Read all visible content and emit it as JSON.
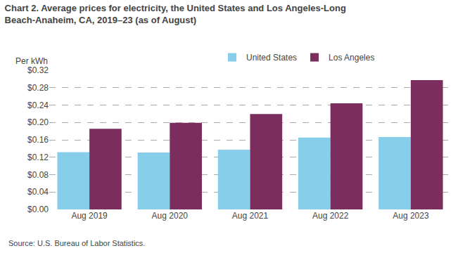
{
  "chart_data": {
    "type": "bar",
    "title": "Chart 2. Average prices for electricity, the United States and Los Angeles-Long Beach-Anaheim, CA, 2019–23 (as of August)",
    "ylabel": "Per kWh",
    "categories": [
      "Aug 2019",
      "Aug 2020",
      "Aug 2021",
      "Aug 2022",
      "Aug 2023"
    ],
    "series": [
      {
        "name": "United States",
        "color": "#87CEEB",
        "values": [
          0.1316,
          0.1309,
          0.1375,
          0.1651,
          0.1665
        ]
      },
      {
        "name": "Los Angeles",
        "color": "#7B2D5E",
        "values": [
          0.1855,
          0.199,
          0.2195,
          0.244,
          0.2975
        ]
      }
    ],
    "ylim": [
      0,
      0.32
    ],
    "yticks": [
      {
        "value": 0.0,
        "label": "$0.00"
      },
      {
        "value": 0.04,
        "label": "$0.04"
      },
      {
        "value": 0.08,
        "label": "$0.08"
      },
      {
        "value": 0.12,
        "label": "$0.12"
      },
      {
        "value": 0.16,
        "label": "$0.16"
      },
      {
        "value": 0.2,
        "label": "$0.20"
      },
      {
        "value": 0.24,
        "label": "$0.24"
      },
      {
        "value": 0.28,
        "label": "$0.28"
      },
      {
        "value": 0.32,
        "label": "$0.32"
      }
    ],
    "grid": true,
    "legend": "top",
    "annotations": [
      "Source: U.S. Bureau of Labor Statistics."
    ]
  }
}
